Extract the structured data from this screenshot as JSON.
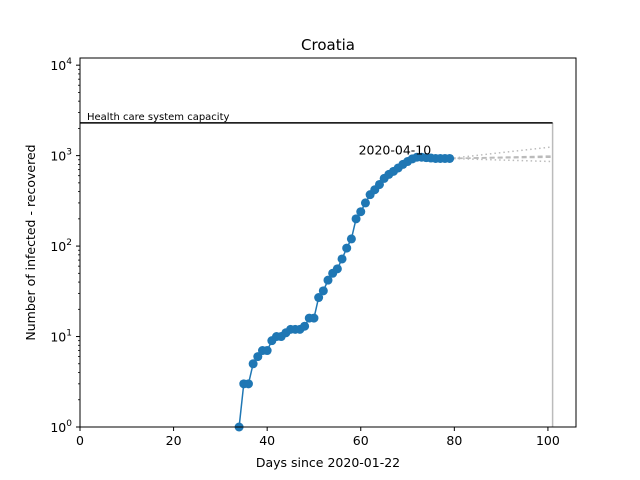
{
  "chart_data": {
    "type": "line",
    "title": "Croatia",
    "xlabel": "Days since 2020-01-22",
    "ylabel": "Number of infected - recovered",
    "xlim": [
      0,
      106
    ],
    "ylim": [
      1,
      12000
    ],
    "yscale": "log",
    "xticks": [
      0,
      20,
      40,
      60,
      80,
      100
    ],
    "yticks": [
      {
        "value": 1,
        "base": "10",
        "exp": "0"
      },
      {
        "value": 10,
        "base": "10",
        "exp": "1"
      },
      {
        "value": 100,
        "base": "10",
        "exp": "2"
      },
      {
        "value": 1000,
        "base": "10",
        "exp": "3"
      },
      {
        "value": 10000,
        "base": "10",
        "exp": "4"
      }
    ],
    "grid": false,
    "series": [
      {
        "color": "#1f77b4",
        "x": [
          34,
          35,
          36,
          37,
          38,
          39,
          40,
          41,
          42,
          43,
          44,
          45,
          46,
          47,
          48,
          49,
          50,
          51,
          52,
          53,
          54,
          55,
          56,
          57,
          58,
          59,
          60,
          61,
          62,
          63,
          64,
          65,
          66,
          67,
          68,
          69,
          70,
          71,
          72,
          73,
          74,
          75,
          76,
          77,
          78,
          79
        ],
        "y": [
          1,
          3,
          3,
          5,
          6,
          7,
          7,
          9,
          10,
          10,
          11,
          12,
          12,
          12,
          13,
          16,
          16,
          27,
          32,
          42,
          50,
          56,
          72,
          95,
          120,
          200,
          240,
          300,
          370,
          420,
          480,
          560,
          620,
          670,
          730,
          800,
          860,
          920,
          960,
          960,
          950,
          940,
          930,
          930,
          930,
          930
        ]
      }
    ],
    "projections": [
      {
        "style": "dotted",
        "color": "#bbbbbb",
        "x": [
          79,
          101
        ],
        "y": [
          930,
          1250
        ]
      },
      {
        "style": "dashed",
        "color": "#bbbbbb",
        "x": [
          79,
          101
        ],
        "y": [
          930,
          990
        ]
      },
      {
        "style": "dashed",
        "color": "#bbbbbb",
        "x": [
          79,
          101
        ],
        "y": [
          930,
          960
        ]
      },
      {
        "style": "dotted",
        "color": "#bbbbbb",
        "x": [
          79,
          101
        ],
        "y": [
          930,
          860
        ]
      }
    ],
    "capacity": {
      "label": "Health care system capacity",
      "value": 2300,
      "x_end": 101
    },
    "vline": {
      "x": 101,
      "color": "#bbbbbb"
    },
    "annotations": [
      {
        "text": "2020-04-10",
        "x": 72,
        "y": 1000
      }
    ]
  }
}
